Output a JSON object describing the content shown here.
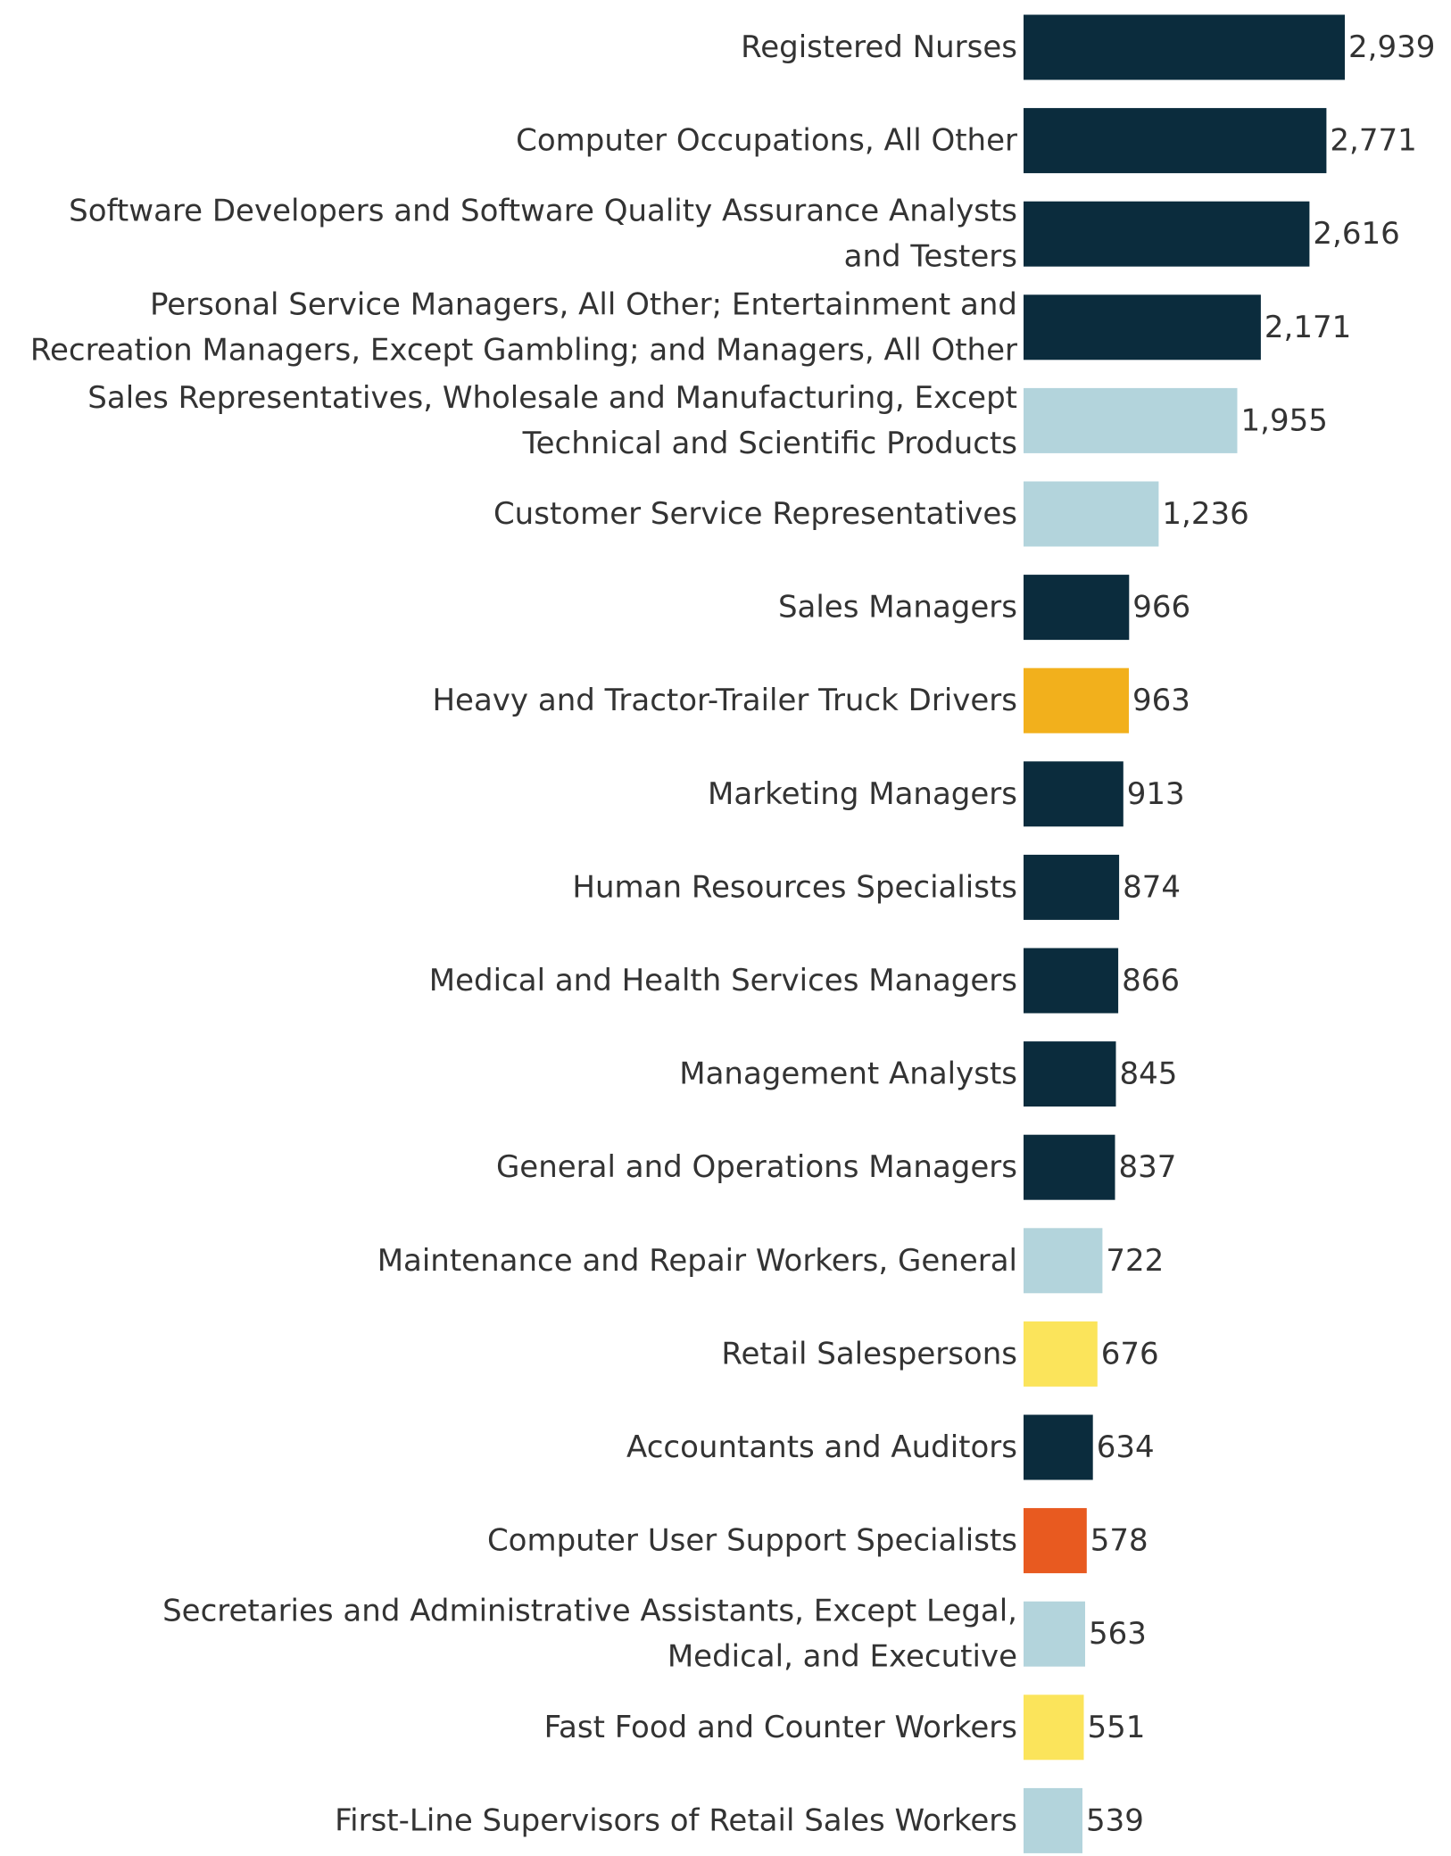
{
  "chart_data": {
    "type": "bar",
    "orientation": "horizontal",
    "grid": false,
    "xlim": [
      0,
      2939
    ],
    "categories": [
      [
        "Registered Nurses"
      ],
      [
        "Computer Occupations, All Other"
      ],
      [
        "Software Developers and Software Quality Assurance Analysts",
        "and Testers"
      ],
      [
        "Personal Service Managers, All Other; Entertainment and",
        "Recreation Managers, Except Gambling; and Managers, All Other"
      ],
      [
        "Sales Representatives, Wholesale and Manufacturing, Except",
        "Technical and Scientific Products"
      ],
      [
        "Customer Service Representatives"
      ],
      [
        "Sales Managers"
      ],
      [
        "Heavy and Tractor-Trailer Truck Drivers"
      ],
      [
        "Marketing Managers"
      ],
      [
        "Human Resources Specialists"
      ],
      [
        "Medical and Health Services Managers"
      ],
      [
        "Management Analysts"
      ],
      [
        "General and Operations Managers"
      ],
      [
        "Maintenance and Repair Workers, General"
      ],
      [
        "Retail Salespersons"
      ],
      [
        "Accountants and Auditors"
      ],
      [
        "Computer User Support Specialists"
      ],
      [
        "Secretaries and Administrative Assistants, Except Legal,",
        "Medical, and Executive"
      ],
      [
        "Fast Food and Counter Workers"
      ],
      [
        "First-Line Supervisors of Retail Sales Workers"
      ]
    ],
    "values": [
      2939,
      2771,
      2616,
      2171,
      1955,
      1236,
      966,
      963,
      913,
      874,
      866,
      845,
      837,
      722,
      676,
      634,
      578,
      563,
      551,
      539
    ],
    "value_labels": [
      "2,939",
      "2,771",
      "2,616",
      "2,171",
      "1,955",
      "1,236",
      "966",
      "963",
      "913",
      "874",
      "866",
      "845",
      "837",
      "722",
      "676",
      "634",
      "578",
      "563",
      "551",
      "539"
    ],
    "colors": [
      "#0b2c3d",
      "#0b2c3d",
      "#0b2c3d",
      "#0b2c3d",
      "#b3d4dc",
      "#b3d4dc",
      "#0b2c3d",
      "#f2b01c",
      "#0b2c3d",
      "#0b2c3d",
      "#0b2c3d",
      "#0b2c3d",
      "#0b2c3d",
      "#b3d4dc",
      "#fbe45b",
      "#0b2c3d",
      "#e85a20",
      "#b3d4dc",
      "#fbe45b",
      "#b3d4dc"
    ]
  }
}
